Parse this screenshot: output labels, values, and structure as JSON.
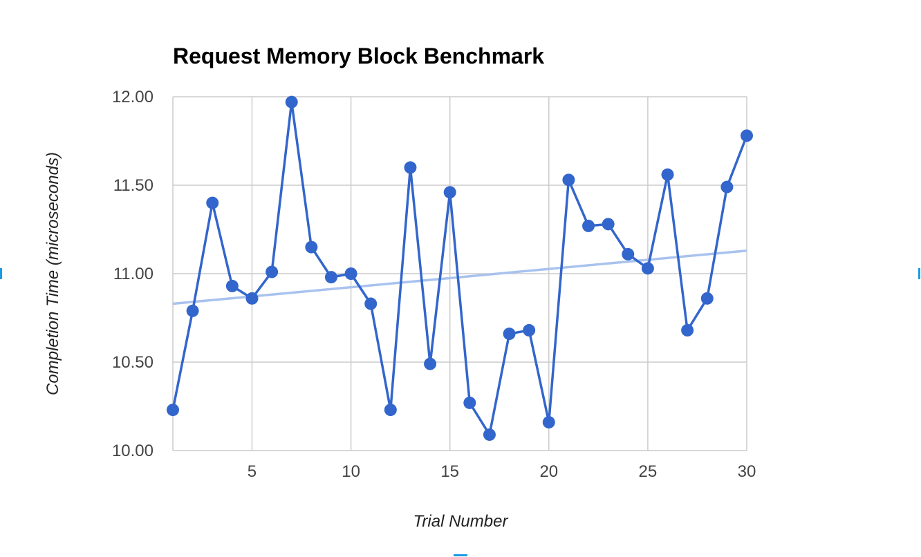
{
  "chart_data": {
    "type": "line",
    "title": "Request Memory Block Benchmark",
    "xlabel": "Trial Number",
    "ylabel": "Completion Time (microseconds)",
    "xlim": [
      1,
      30
    ],
    "ylim": [
      10.0,
      12.0
    ],
    "x_ticks": [
      5,
      10,
      15,
      20,
      25,
      30
    ],
    "y_ticks": [
      10.0,
      10.5,
      11.0,
      11.5,
      12.0
    ],
    "y_tick_labels": [
      "10.00",
      "10.50",
      "11.00",
      "11.50",
      "12.00"
    ],
    "grid": true,
    "legend": "none",
    "series": [
      {
        "name": "Completion Time",
        "color": "#3366cc",
        "x": [
          1,
          2,
          3,
          4,
          5,
          6,
          7,
          8,
          9,
          10,
          11,
          12,
          13,
          14,
          15,
          16,
          17,
          18,
          19,
          20,
          21,
          22,
          23,
          24,
          25,
          26,
          27,
          28,
          29,
          30
        ],
        "values": [
          10.23,
          10.79,
          11.4,
          10.93,
          10.86,
          11.01,
          11.97,
          11.15,
          10.98,
          11.0,
          10.83,
          10.23,
          11.6,
          10.49,
          11.46,
          10.27,
          10.09,
          10.66,
          10.68,
          10.16,
          11.53,
          11.27,
          11.28,
          11.11,
          11.03,
          11.56,
          10.68,
          10.86,
          11.49,
          11.78
        ]
      }
    ],
    "trendline": {
      "name": "Trendline",
      "color": "#a9c2ee",
      "x": [
        1,
        30
      ],
      "values": [
        10.83,
        11.13
      ]
    }
  }
}
